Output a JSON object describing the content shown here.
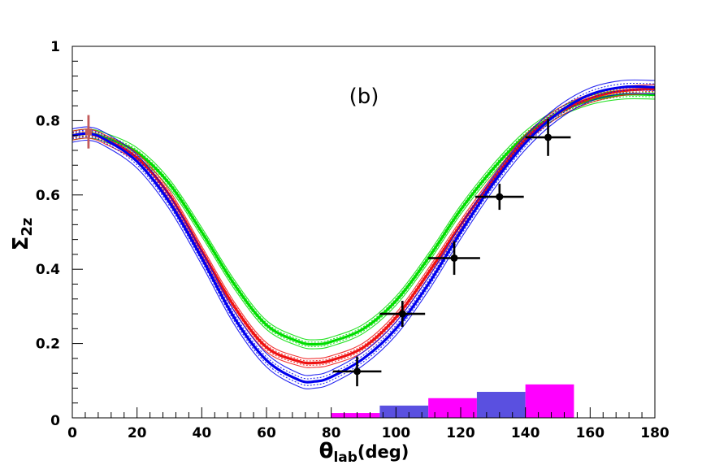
{
  "chart_data": {
    "type": "line",
    "panel_label": "(b)",
    "xlabel": {
      "symbol": "θ",
      "subscript": "lab",
      "unit": "(deg)"
    },
    "ylabel": {
      "symbol": "Σ",
      "subscript": "2z"
    },
    "xlim": [
      0,
      180
    ],
    "ylim": [
      0,
      1
    ],
    "xticks": [
      "0",
      "20",
      "40",
      "60",
      "80",
      "100",
      "120",
      "140",
      "160",
      "180"
    ],
    "yticks": [
      "0",
      "0.2",
      "0.4",
      "0.6",
      "0.8",
      "1"
    ],
    "colors": {
      "green": "#00dd00",
      "red": "#ee1111",
      "blue": "#0000ee",
      "black": "#000000",
      "brown": "#c25a5a",
      "magenta": "#ff00ff",
      "slate": "#5a50e0"
    },
    "series": [
      {
        "name": "green band",
        "x": [
          0,
          5,
          10,
          20,
          30,
          40,
          50,
          60,
          70,
          75,
          80,
          90,
          100,
          110,
          120,
          130,
          140,
          150,
          160,
          170,
          180
        ],
        "y": [
          0.76,
          0.765,
          0.755,
          0.715,
          0.63,
          0.5,
          0.36,
          0.25,
          0.205,
          0.198,
          0.205,
          0.24,
          0.315,
          0.43,
          0.56,
          0.67,
          0.76,
          0.82,
          0.855,
          0.87,
          0.87
        ],
        "half_width": 0.012
      },
      {
        "name": "red band",
        "x": [
          0,
          5,
          10,
          20,
          30,
          40,
          50,
          60,
          70,
          75,
          80,
          90,
          100,
          110,
          120,
          130,
          140,
          150,
          160,
          170,
          180
        ],
        "y": [
          0.76,
          0.765,
          0.75,
          0.7,
          0.6,
          0.45,
          0.3,
          0.19,
          0.152,
          0.148,
          0.155,
          0.19,
          0.27,
          0.39,
          0.52,
          0.64,
          0.75,
          0.82,
          0.86,
          0.88,
          0.885
        ],
        "half_width": 0.012
      },
      {
        "name": "blue band",
        "x": [
          0,
          5,
          10,
          20,
          30,
          40,
          50,
          60,
          70,
          75,
          80,
          90,
          100,
          110,
          120,
          130,
          140,
          150,
          160,
          170,
          180
        ],
        "y": [
          0.76,
          0.765,
          0.75,
          0.69,
          0.58,
          0.43,
          0.27,
          0.155,
          0.102,
          0.098,
          0.11,
          0.16,
          0.24,
          0.36,
          0.5,
          0.63,
          0.74,
          0.82,
          0.87,
          0.89,
          0.89
        ],
        "half_width": 0.018
      }
    ],
    "data_points": [
      {
        "x": 88,
        "xerr": 7.5,
        "y": 0.125,
        "yerr": 0.04
      },
      {
        "x": 102,
        "xerr": 7.0,
        "y": 0.28,
        "yerr": 0.035
      },
      {
        "x": 118,
        "xerr": 8.0,
        "y": 0.43,
        "yerr": 0.045
      },
      {
        "x": 132,
        "xerr": 7.5,
        "y": 0.595,
        "yerr": 0.035
      },
      {
        "x": 147,
        "xerr": 7.0,
        "y": 0.755,
        "yerr": 0.05
      }
    ],
    "reference_point": {
      "x": 5,
      "y": 0.77,
      "yerr": 0.045
    },
    "histogram": [
      {
        "x0": 80,
        "x1": 95,
        "value": 0.013,
        "color": "magenta"
      },
      {
        "x0": 95,
        "x1": 110,
        "value": 0.033,
        "color": "slate"
      },
      {
        "x0": 110,
        "x1": 125,
        "value": 0.053,
        "color": "magenta"
      },
      {
        "x0": 125,
        "x1": 140,
        "value": 0.07,
        "color": "slate"
      },
      {
        "x0": 140,
        "x1": 155,
        "value": 0.09,
        "color": "magenta"
      }
    ]
  }
}
